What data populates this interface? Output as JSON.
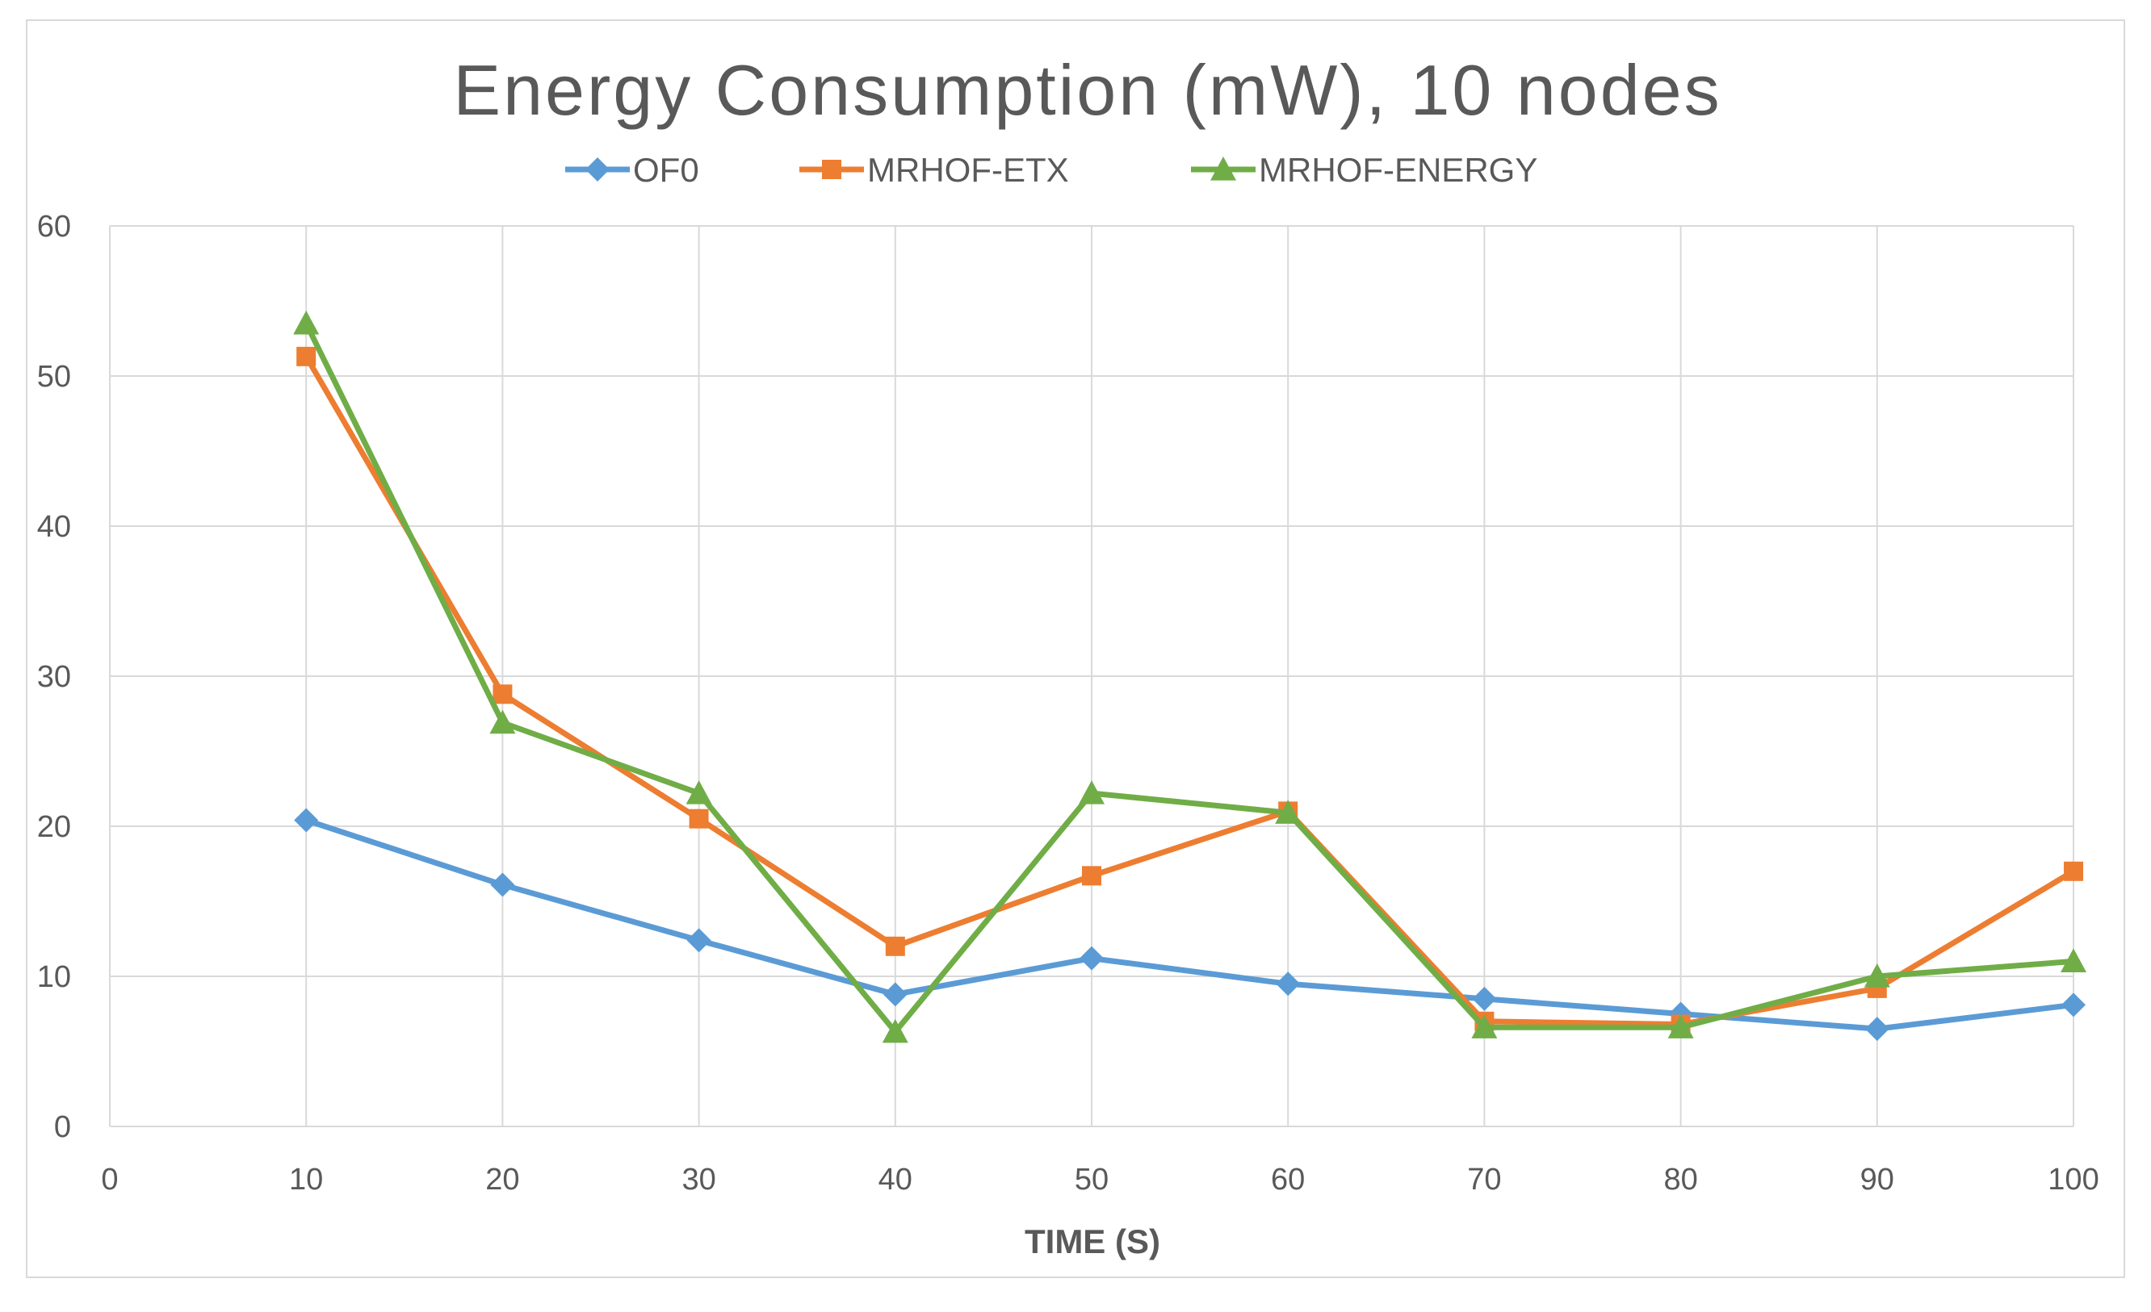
{
  "chart_data": {
    "type": "line",
    "title": "Energy Consumption (mW), 10 nodes",
    "xlabel": "TIME (S)",
    "ylabel": "",
    "xlim": [
      0,
      100
    ],
    "ylim": [
      0,
      60
    ],
    "x_ticks": [
      "0",
      "10",
      "20",
      "30",
      "40",
      "50",
      "60",
      "70",
      "80",
      "90",
      "100"
    ],
    "y_ticks": [
      "0",
      "10",
      "20",
      "30",
      "40",
      "50",
      "60"
    ],
    "grid": true,
    "legend_position": "top",
    "x": [
      10,
      20,
      30,
      40,
      50,
      60,
      70,
      80,
      90,
      100
    ],
    "series": [
      {
        "name": "OF0",
        "color": "#5b9bd5",
        "marker": "diamond",
        "values": [
          20.4,
          16.1,
          12.4,
          8.8,
          11.2,
          9.5,
          8.5,
          7.5,
          6.5,
          8.1
        ]
      },
      {
        "name": "MRHOF-ETX",
        "color": "#ed7d31",
        "marker": "square",
        "values": [
          51.3,
          28.8,
          20.5,
          12.0,
          16.7,
          21.0,
          7.0,
          6.8,
          9.2,
          17.0
        ]
      },
      {
        "name": "MRHOF-ENERGY",
        "color": "#70ad47",
        "marker": "triangle",
        "values": [
          53.5,
          26.9,
          22.2,
          6.3,
          22.2,
          20.9,
          6.6,
          6.6,
          10.0,
          11.0
        ]
      }
    ]
  }
}
